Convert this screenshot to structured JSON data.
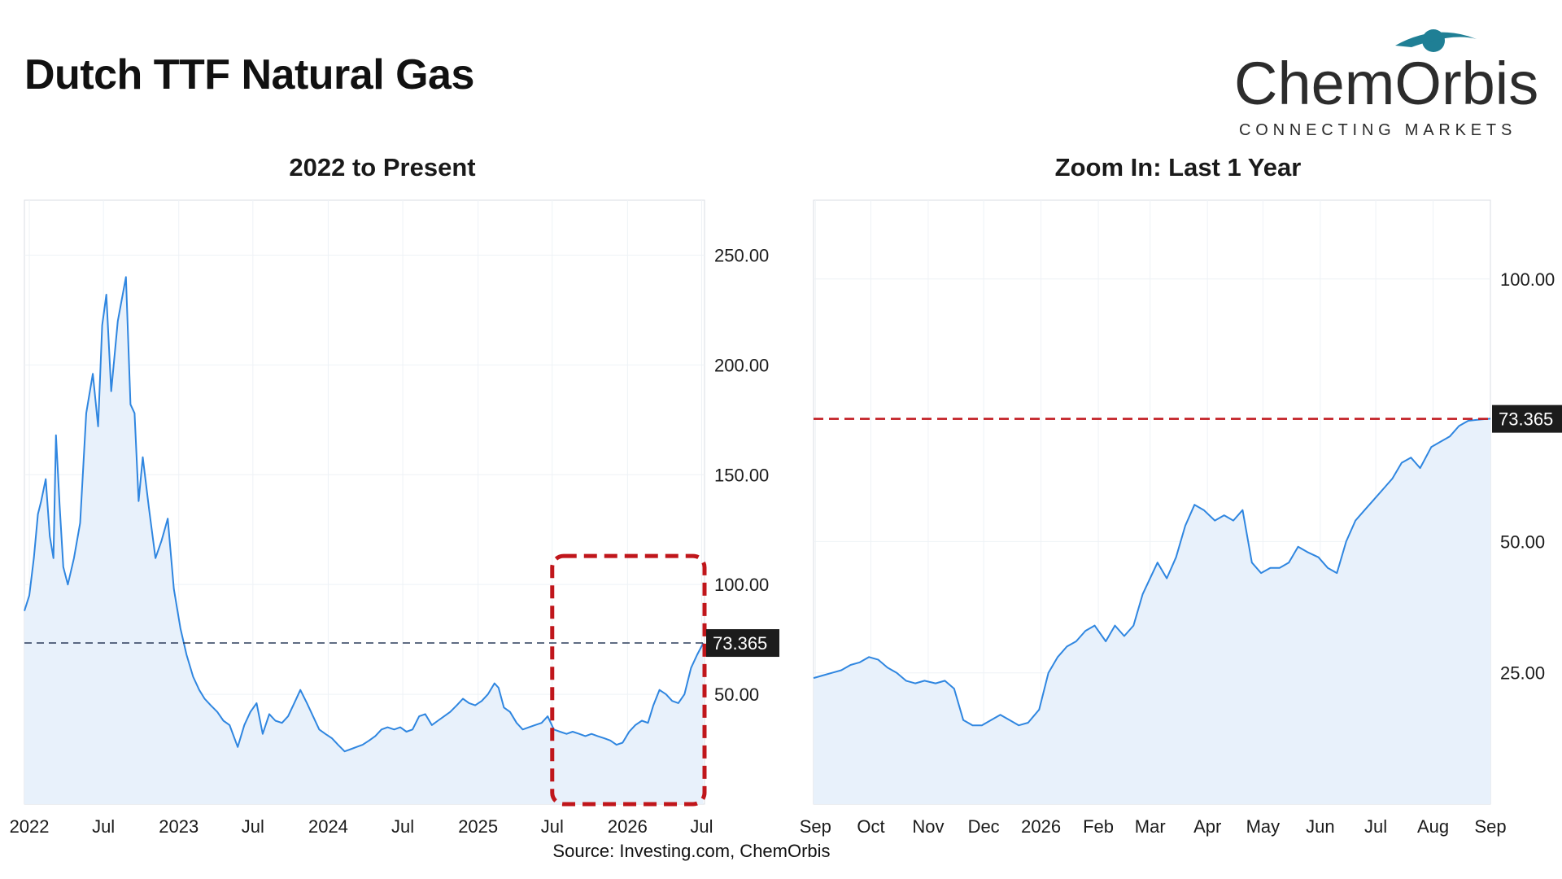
{
  "page": {
    "title": "Dutch TTF Natural Gas",
    "source": "Source: Investing.com, ChemOrbis"
  },
  "logo": {
    "name": "ChemOrbis",
    "tagline": "CONNECTING MARKETS"
  },
  "colors": {
    "line": "#2f86e0",
    "area": "#e8f1fb",
    "grid": "#eef2f6",
    "frame": "#d9dde3",
    "ref_line_left": "#2a3b5a",
    "ref_line_right": "#c0161b",
    "highlight_box": "#c0161b",
    "price_tag": "#1c1c1c"
  },
  "chart_data": [
    {
      "id": "left",
      "type": "area",
      "title": "2022 to Present",
      "x_type": "date",
      "xlim": [
        "2021-12-20",
        "2026-07-08"
      ],
      "ylim": [
        0,
        275
      ],
      "y_axis_side": "right",
      "y_ticks": [
        {
          "value": 250,
          "label": "250.00"
        },
        {
          "value": 200,
          "label": "200.00"
        },
        {
          "value": 150,
          "label": "150.00"
        },
        {
          "value": 100,
          "label": "100.00"
        },
        {
          "value": 50,
          "label": "50.00"
        }
      ],
      "x_ticks": [
        {
          "date": "2022-01-01",
          "label": "2022"
        },
        {
          "date": "2022-07-01",
          "label": "Jul"
        },
        {
          "date": "2023-01-01",
          "label": "2023"
        },
        {
          "date": "2023-07-01",
          "label": "Jul"
        },
        {
          "date": "2024-01-01",
          "label": "2024"
        },
        {
          "date": "2024-07-01",
          "label": "Jul"
        },
        {
          "date": "2025-01-01",
          "label": "2025"
        },
        {
          "date": "2025-07-01",
          "label": "Jul"
        },
        {
          "date": "2026-01-01",
          "label": "2026"
        },
        {
          "date": "2026-07-01",
          "label": "Jul"
        }
      ],
      "reference_line": {
        "value": 73.365,
        "label": "73.365",
        "style": "dashed"
      },
      "highlight": {
        "from": "2025-07-01",
        "to": "2026-07-08",
        "y_from": 0,
        "y_to": 113
      },
      "grid": true,
      "series": [
        {
          "points": [
            [
              "2021-12-20",
              88
            ],
            [
              "2022-01-01",
              95
            ],
            [
              "2022-01-12",
              112
            ],
            [
              "2022-01-22",
              132
            ],
            [
              "2022-01-30",
              138
            ],
            [
              "2022-02-10",
              148
            ],
            [
              "2022-02-20",
              122
            ],
            [
              "2022-03-01",
              112
            ],
            [
              "2022-03-07",
              168
            ],
            [
              "2022-03-16",
              136
            ],
            [
              "2022-03-25",
              108
            ],
            [
              "2022-04-05",
              100
            ],
            [
              "2022-04-20",
              112
            ],
            [
              "2022-05-05",
              128
            ],
            [
              "2022-05-20",
              178
            ],
            [
              "2022-06-05",
              196
            ],
            [
              "2022-06-18",
              172
            ],
            [
              "2022-06-28",
              218
            ],
            [
              "2022-07-08",
              232
            ],
            [
              "2022-07-20",
              188
            ],
            [
              "2022-08-05",
              220
            ],
            [
              "2022-08-25",
              240
            ],
            [
              "2022-09-05",
              182
            ],
            [
              "2022-09-15",
              178
            ],
            [
              "2022-09-25",
              138
            ],
            [
              "2022-10-05",
              158
            ],
            [
              "2022-10-20",
              135
            ],
            [
              "2022-11-05",
              112
            ],
            [
              "2022-11-20",
              120
            ],
            [
              "2022-12-05",
              130
            ],
            [
              "2022-12-20",
              98
            ],
            [
              "2023-01-05",
              80
            ],
            [
              "2023-01-20",
              68
            ],
            [
              "2023-02-05",
              58
            ],
            [
              "2023-02-20",
              52
            ],
            [
              "2023-03-05",
              48
            ],
            [
              "2023-03-20",
              45
            ],
            [
              "2023-04-05",
              42
            ],
            [
              "2023-04-20",
              38
            ],
            [
              "2023-05-05",
              36
            ],
            [
              "2023-05-25",
              26
            ],
            [
              "2023-06-10",
              36
            ],
            [
              "2023-06-25",
              42
            ],
            [
              "2023-07-10",
              46
            ],
            [
              "2023-07-25",
              32
            ],
            [
              "2023-08-10",
              41
            ],
            [
              "2023-08-25",
              38
            ],
            [
              "2023-09-10",
              37
            ],
            [
              "2023-09-25",
              40
            ],
            [
              "2023-10-10",
              46
            ],
            [
              "2023-10-25",
              52
            ],
            [
              "2023-11-10",
              46
            ],
            [
              "2023-11-25",
              40
            ],
            [
              "2023-12-10",
              34
            ],
            [
              "2023-12-25",
              32
            ],
            [
              "2024-01-10",
              30
            ],
            [
              "2024-01-25",
              27
            ],
            [
              "2024-02-10",
              24
            ],
            [
              "2024-02-25",
              25
            ],
            [
              "2024-03-10",
              26
            ],
            [
              "2024-03-25",
              27
            ],
            [
              "2024-04-10",
              29
            ],
            [
              "2024-04-25",
              31
            ],
            [
              "2024-05-10",
              34
            ],
            [
              "2024-05-25",
              35
            ],
            [
              "2024-06-10",
              34
            ],
            [
              "2024-06-25",
              35
            ],
            [
              "2024-07-10",
              33
            ],
            [
              "2024-07-25",
              34
            ],
            [
              "2024-08-10",
              40
            ],
            [
              "2024-08-25",
              41
            ],
            [
              "2024-09-10",
              36
            ],
            [
              "2024-09-25",
              38
            ],
            [
              "2024-10-10",
              40
            ],
            [
              "2024-10-25",
              42
            ],
            [
              "2024-11-10",
              45
            ],
            [
              "2024-11-25",
              48
            ],
            [
              "2024-12-10",
              46
            ],
            [
              "2024-12-25",
              45
            ],
            [
              "2025-01-10",
              47
            ],
            [
              "2025-01-25",
              50
            ],
            [
              "2025-02-10",
              55
            ],
            [
              "2025-02-20",
              53
            ],
            [
              "2025-03-05",
              44
            ],
            [
              "2025-03-20",
              42
            ],
            [
              "2025-04-05",
              37
            ],
            [
              "2025-04-20",
              34
            ],
            [
              "2025-05-05",
              35
            ],
            [
              "2025-05-20",
              36
            ],
            [
              "2025-06-05",
              37
            ],
            [
              "2025-06-20",
              40
            ],
            [
              "2025-07-05",
              34
            ],
            [
              "2025-07-20",
              33
            ],
            [
              "2025-08-05",
              32
            ],
            [
              "2025-08-20",
              33
            ],
            [
              "2025-09-05",
              32
            ],
            [
              "2025-09-20",
              31
            ],
            [
              "2025-10-05",
              32
            ],
            [
              "2025-10-20",
              31
            ],
            [
              "2025-11-05",
              30
            ],
            [
              "2025-11-20",
              29
            ],
            [
              "2025-12-05",
              27
            ],
            [
              "2025-12-20",
              28
            ],
            [
              "2026-01-05",
              33
            ],
            [
              "2026-01-20",
              36
            ],
            [
              "2026-02-05",
              38
            ],
            [
              "2026-02-20",
              37
            ],
            [
              "2026-03-05",
              45
            ],
            [
              "2026-03-20",
              52
            ],
            [
              "2026-04-05",
              50
            ],
            [
              "2026-04-20",
              47
            ],
            [
              "2026-05-05",
              46
            ],
            [
              "2026-05-20",
              50
            ],
            [
              "2026-06-05",
              62
            ],
            [
              "2026-06-20",
              68
            ],
            [
              "2026-07-05",
              73.4
            ]
          ]
        }
      ]
    },
    {
      "id": "right",
      "type": "area",
      "title": "Zoom In: Last 1 Year",
      "x_type": "date",
      "xlim": [
        "2025-08-31",
        "2026-09-01"
      ],
      "ylim": [
        0,
        115
      ],
      "y_axis_side": "right",
      "y_ticks": [
        {
          "value": 100,
          "label": "100.00"
        },
        {
          "value": 50,
          "label": "50.00"
        },
        {
          "value": 25,
          "label": "25.00"
        }
      ],
      "x_ticks": [
        {
          "date": "2025-09-01",
          "label": "Sep"
        },
        {
          "date": "2025-10-01",
          "label": "Oct"
        },
        {
          "date": "2025-11-01",
          "label": "Nov"
        },
        {
          "date": "2025-12-01",
          "label": "Dec"
        },
        {
          "date": "2026-01-01",
          "label": "2026"
        },
        {
          "date": "2026-02-01",
          "label": "Feb"
        },
        {
          "date": "2026-03-01",
          "label": "Mar"
        },
        {
          "date": "2026-04-01",
          "label": "Apr"
        },
        {
          "date": "2026-05-01",
          "label": "May"
        },
        {
          "date": "2026-06-01",
          "label": "Jun"
        },
        {
          "date": "2026-07-01",
          "label": "Jul"
        },
        {
          "date": "2026-08-01",
          "label": "Aug"
        },
        {
          "date": "2026-09-01",
          "label": "Sep"
        }
      ],
      "reference_line": {
        "value": 73.365,
        "label": "73.365",
        "style": "dashed"
      },
      "grid": true,
      "series": [
        {
          "points": [
            [
              "2025-08-31",
              24
            ],
            [
              "2025-09-05",
              24.5
            ],
            [
              "2025-09-10",
              25
            ],
            [
              "2025-09-15",
              25.5
            ],
            [
              "2025-09-20",
              26.5
            ],
            [
              "2025-09-25",
              27
            ],
            [
              "2025-09-30",
              28
            ],
            [
              "2025-10-05",
              27.5
            ],
            [
              "2025-10-10",
              26
            ],
            [
              "2025-10-15",
              25
            ],
            [
              "2025-10-20",
              23.5
            ],
            [
              "2025-10-25",
              23
            ],
            [
              "2025-10-30",
              23.5
            ],
            [
              "2025-11-05",
              23
            ],
            [
              "2025-11-10",
              23.5
            ],
            [
              "2025-11-15",
              22
            ],
            [
              "2025-11-20",
              16
            ],
            [
              "2025-11-25",
              15
            ],
            [
              "2025-11-30",
              15
            ],
            [
              "2025-12-05",
              16
            ],
            [
              "2025-12-10",
              17
            ],
            [
              "2025-12-15",
              16
            ],
            [
              "2025-12-20",
              15
            ],
            [
              "2025-12-25",
              15.5
            ],
            [
              "2025-12-31",
              18
            ],
            [
              "2026-01-05",
              25
            ],
            [
              "2026-01-10",
              28
            ],
            [
              "2026-01-15",
              30
            ],
            [
              "2026-01-20",
              31
            ],
            [
              "2026-01-25",
              33
            ],
            [
              "2026-01-30",
              34
            ],
            [
              "2026-02-05",
              31
            ],
            [
              "2026-02-10",
              34
            ],
            [
              "2026-02-15",
              32
            ],
            [
              "2026-02-20",
              34
            ],
            [
              "2026-02-25",
              40
            ],
            [
              "2026-03-01",
              43
            ],
            [
              "2026-03-05",
              46
            ],
            [
              "2026-03-10",
              43
            ],
            [
              "2026-03-15",
              47
            ],
            [
              "2026-03-20",
              53
            ],
            [
              "2026-03-25",
              57
            ],
            [
              "2026-03-30",
              56
            ],
            [
              "2026-04-05",
              54
            ],
            [
              "2026-04-10",
              55
            ],
            [
              "2026-04-15",
              54
            ],
            [
              "2026-04-20",
              56
            ],
            [
              "2026-04-25",
              46
            ],
            [
              "2026-04-30",
              44
            ],
            [
              "2026-05-05",
              45
            ],
            [
              "2026-05-10",
              45
            ],
            [
              "2026-05-15",
              46
            ],
            [
              "2026-05-20",
              49
            ],
            [
              "2026-05-25",
              48
            ],
            [
              "2026-05-31",
              47
            ],
            [
              "2026-06-05",
              45
            ],
            [
              "2026-06-10",
              44
            ],
            [
              "2026-06-15",
              50
            ],
            [
              "2026-06-20",
              54
            ],
            [
              "2026-06-25",
              56
            ],
            [
              "2026-06-30",
              58
            ],
            [
              "2026-07-05",
              60
            ],
            [
              "2026-07-10",
              62
            ],
            [
              "2026-07-15",
              65
            ],
            [
              "2026-07-20",
              66
            ],
            [
              "2026-07-25",
              64
            ],
            [
              "2026-07-31",
              68
            ],
            [
              "2026-08-05",
              69
            ],
            [
              "2026-08-10",
              70
            ],
            [
              "2026-08-15",
              72
            ],
            [
              "2026-08-20",
              73
            ],
            [
              "2026-08-25",
              73.2
            ],
            [
              "2026-09-01",
              73.4
            ]
          ]
        }
      ]
    }
  ]
}
